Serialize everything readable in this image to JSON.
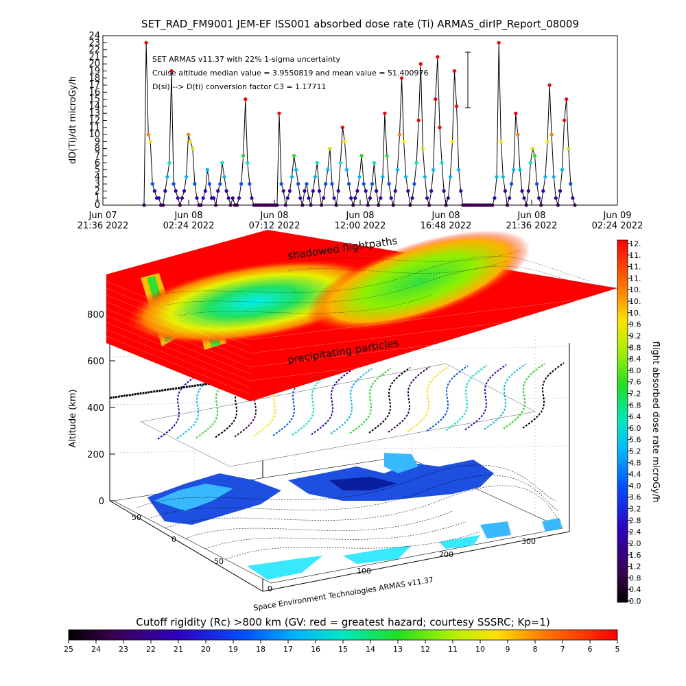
{
  "title": "SET_RAD_FM9001   JEM-EF ISS001 absorbed dose rate (Ti) ARMAS_dirIP_Report_08009",
  "footer_credit": "Space Environment Technologies ARMAS v11.37",
  "annotations": {
    "line1": "SET ARMAS v11.37 with 22% 1-sigma uncertainty",
    "line2": "Cruise altitude median value = 3.9550819 and mean value = 51.400976",
    "line3": "D(si) --> D(ti) conversion factor C3 = 1.17711",
    "shadowed": "shadowed flightpaths",
    "precip": "precipitating particles"
  },
  "chart_data": [
    {
      "type": "scatter",
      "ylabel": "dD(Ti)/dt microGy/h",
      "ylim": [
        0,
        24
      ],
      "y_ticks": [
        "0",
        "1",
        "2",
        "3",
        "4",
        "5",
        "6",
        "7",
        "8",
        "9",
        "10",
        "11",
        "12",
        "13",
        "14",
        "15",
        "16",
        "17",
        "18",
        "19",
        "20",
        "21",
        "22",
        "23",
        "24"
      ],
      "x_ticks": [
        {
          "line1": "Jun 07",
          "line2": "21:36 2022"
        },
        {
          "line1": "Jun 08",
          "line2": "02:24 2022"
        },
        {
          "line1": "Jun 08",
          "line2": "07:12 2022"
        },
        {
          "line1": "Jun 08",
          "line2": "12:00 2022"
        },
        {
          "line1": "Jun 08",
          "line2": "16:48 2022"
        },
        {
          "line1": "Jun 08",
          "line2": "21:36 2022"
        },
        {
          "line1": "Jun 09",
          "line2": "02:24 2022"
        }
      ],
      "series_values": [
        0,
        23,
        10,
        9,
        3,
        2,
        1,
        1,
        0,
        0,
        2,
        4,
        6,
        19,
        3,
        2,
        1,
        0,
        1,
        2,
        4,
        10,
        9,
        8,
        3,
        1,
        0,
        0,
        1,
        2,
        5,
        3,
        1,
        1,
        0,
        2,
        3,
        6,
        4,
        2,
        1,
        0,
        1,
        0,
        0,
        1,
        3,
        7,
        15,
        6,
        3,
        1,
        0,
        0,
        0,
        0,
        0,
        0,
        0,
        0,
        0,
        0,
        0,
        0,
        13,
        3,
        2,
        0,
        1,
        2,
        4,
        7,
        5,
        3,
        1,
        0,
        2,
        3,
        1,
        0,
        2,
        4,
        6,
        2,
        0,
        1,
        3,
        5,
        8,
        3,
        1,
        0,
        2,
        6,
        11,
        9,
        5,
        3,
        1,
        0,
        1,
        2,
        4,
        7,
        3,
        2,
        0,
        1,
        3,
        6,
        2,
        0,
        1,
        4,
        13,
        7,
        3,
        1,
        0,
        2,
        5,
        10,
        18,
        9,
        4,
        2,
        0,
        1,
        3,
        6,
        12,
        20,
        8,
        4,
        1,
        0,
        2,
        5,
        15,
        21,
        11,
        6,
        2,
        0,
        1,
        4,
        9,
        19,
        14,
        5,
        2,
        0,
        0,
        0,
        0,
        0,
        0,
        0,
        0,
        0,
        0,
        0,
        0,
        0,
        0,
        0,
        1,
        4,
        23,
        9,
        4,
        2,
        0,
        1,
        3,
        5,
        13,
        10,
        5,
        2,
        1,
        0,
        2,
        6,
        8,
        7,
        3,
        1,
        0,
        2,
        4,
        9,
        17,
        10,
        4,
        1,
        0,
        2,
        5,
        12,
        15,
        8,
        3,
        1,
        0
      ]
    },
    {
      "type": "3d-surface",
      "zlabel": "Altitude (km)",
      "z_ticks": [
        "0",
        "200",
        "400",
        "600",
        "800"
      ],
      "lat_ticks": [
        "-50",
        "0",
        "50"
      ],
      "lon_ticks": [
        "0",
        "100",
        "200",
        "300"
      ],
      "colorbar_label": "flight absorbed dose rate microGy/h",
      "colorbar_ticks": [
        "0.0",
        "0.4",
        "0.8",
        "1.2",
        "1.6",
        "2.0",
        "2.4",
        "2.8",
        "3.2",
        "3.6",
        "4.0",
        "4.4",
        "4.8",
        "5.2",
        "5.6",
        "6.0",
        "6.4",
        "6.8",
        "7.2",
        "7.6",
        "8.0",
        "8.4",
        "8.8",
        "9.2",
        "9.6",
        "10.",
        "10.",
        "10.",
        "11.",
        "11.",
        "11.",
        "12."
      ]
    },
    {
      "type": "colorbar",
      "title": "Cutoff rigidity (Rc) >800 km (GV: red = greatest hazard; courtesy SSSRC; Kp=1)",
      "ticks": [
        "25",
        "24",
        "23",
        "22",
        "21",
        "20",
        "19",
        "18",
        "17",
        "16",
        "15",
        "14",
        "13",
        "12",
        "11",
        "10",
        "9",
        "8",
        "7",
        "6",
        "5"
      ]
    }
  ]
}
